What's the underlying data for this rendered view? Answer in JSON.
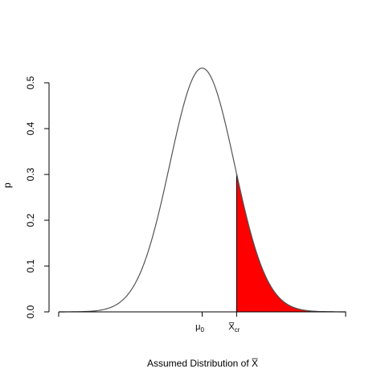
{
  "chart_data": {
    "type": "area",
    "title": "",
    "xlabel": "Assumed Distribution of X̅",
    "ylabel": "p",
    "xlim": [
      -3.33,
      3.33
    ],
    "ylim": [
      0,
      0.5
    ],
    "yticks": [
      0.0,
      0.1,
      0.2,
      0.3,
      0.4,
      0.5
    ],
    "ytick_labels": [
      "0.0",
      "0.1",
      "0.2",
      "0.3",
      "0.4",
      "0.5"
    ],
    "xticks": [
      0,
      0.8
    ],
    "xtick_labels": [
      {
        "main": "μ",
        "sub": "0"
      },
      {
        "main": "X̅",
        "sub": "cr"
      }
    ],
    "curve": {
      "distribution": "normal",
      "mean": 0,
      "sd": 0.75,
      "peak": 0.532,
      "color": "#555555"
    },
    "shaded_region": {
      "from": 0.8,
      "to": "upper tail",
      "color": "#ff0000"
    },
    "grid": false
  }
}
